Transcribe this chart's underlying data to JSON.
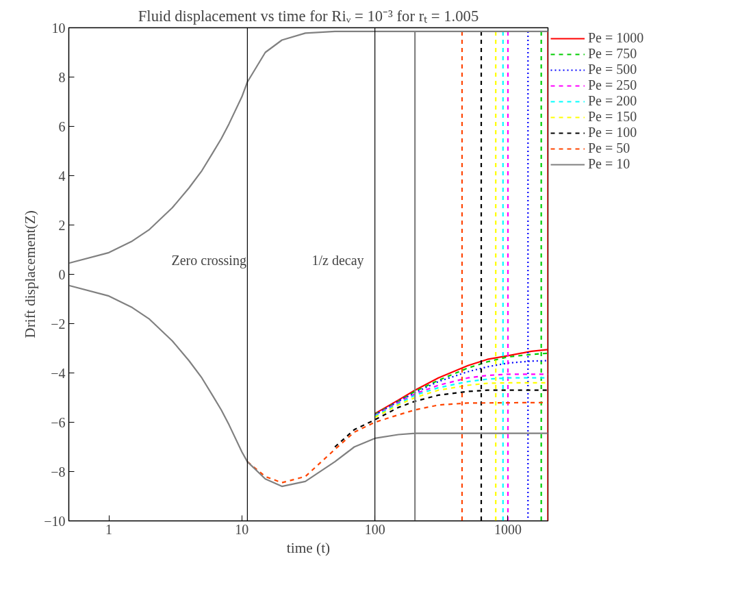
{
  "chart_data": {
    "type": "line",
    "title": "Fluid displacement vs time for Riᵥ = 10⁻³ for rₜ = 1.005",
    "xlabel": "time (t)",
    "ylabel": "Drift displacement(Z)",
    "log": "x",
    "xlim": [
      0.5,
      2000
    ],
    "ylim": [
      -10,
      10
    ],
    "xticks": [
      1,
      10,
      100,
      1000
    ],
    "yticks": [
      -10,
      -8,
      -6,
      -4,
      -2,
      0,
      2,
      4,
      6,
      8,
      10
    ],
    "grid": false,
    "legend": "top right",
    "ref_lines": [
      {
        "axis": "x",
        "value": 11,
        "color": "#000000"
      },
      {
        "axis": "x",
        "value": 100,
        "color": "#000000"
      }
    ],
    "annotations": [
      "Zero crossing",
      "1/z decay"
    ],
    "series": [
      {
        "name": "Pe = 1000",
        "color": "#ff0000",
        "line_style": "solid",
        "x": [
          2000,
          2000,
          null,
          100,
          150,
          200,
          300,
          500,
          700,
          1000,
          1500,
          2000
        ],
        "values": [
          9.85,
          -10,
          null,
          -5.65,
          -5.1,
          -4.7,
          -4.2,
          -3.7,
          -3.45,
          -3.3,
          -3.12,
          -3.05
        ]
      },
      {
        "name": "Pe = 750",
        "color": "#00cc00",
        "line_style": "dashed",
        "x": [
          1780,
          1780,
          null,
          100,
          150,
          200,
          300,
          500,
          700,
          1000,
          1500,
          2000
        ],
        "values": [
          9.85,
          -10,
          null,
          -5.68,
          -5.15,
          -4.75,
          -4.3,
          -3.8,
          -3.55,
          -3.35,
          -3.25,
          -3.2
        ]
      },
      {
        "name": "Pe = 500",
        "color": "#0000ff",
        "line_style": "dotted",
        "x": [
          1415,
          1415,
          null,
          100,
          150,
          200,
          300,
          500,
          700,
          1000,
          1500,
          2000
        ],
        "values": [
          9.85,
          -10,
          null,
          -5.7,
          -5.15,
          -4.8,
          -4.35,
          -3.95,
          -3.75,
          -3.6,
          -3.52,
          -3.5
        ]
      },
      {
        "name": "Pe = 250",
        "color": "#ff00ff",
        "line_style": "dashed",
        "x": [
          1000,
          1000,
          null,
          100,
          150,
          200,
          300,
          500,
          700,
          1000,
          2000
        ],
        "values": [
          9.85,
          -10,
          null,
          -5.72,
          -5.2,
          -4.85,
          -4.5,
          -4.2,
          -4.1,
          -4.05,
          -4.05
        ]
      },
      {
        "name": "Pe = 200",
        "color": "#00ffff",
        "line_style": "dashed",
        "x": [
          918,
          918,
          null,
          100,
          150,
          200,
          300,
          500,
          700,
          1000,
          2000
        ],
        "values": [
          9.85,
          -10,
          null,
          -5.75,
          -5.25,
          -4.9,
          -4.6,
          -4.35,
          -4.25,
          -4.2,
          -4.2
        ]
      },
      {
        "name": "Pe = 150",
        "color": "#ffff00",
        "line_style": "dashed",
        "x": [
          810,
          810,
          null,
          100,
          150,
          200,
          300,
          500,
          700,
          1000,
          2000
        ],
        "values": [
          9.85,
          -10,
          null,
          -5.8,
          -5.3,
          -5.0,
          -4.7,
          -4.5,
          -4.42,
          -4.4,
          -4.4
        ]
      },
      {
        "name": "Pe = 100",
        "color": "#000000",
        "line_style": "dashed",
        "x": [
          630,
          630,
          null,
          50,
          70,
          100,
          150,
          200,
          300,
          500,
          700,
          2000
        ],
        "values": [
          9.85,
          -10,
          null,
          -7.0,
          -6.3,
          -5.9,
          -5.4,
          -5.15,
          -4.9,
          -4.75,
          -4.7,
          -4.7
        ]
      },
      {
        "name": "Pe = 50",
        "color": "#ff4500",
        "line_style": "dashed",
        "x": [
          452,
          452,
          null,
          11,
          15,
          20,
          30,
          50,
          70,
          100,
          150,
          200,
          300,
          500,
          2000
        ],
        "values": [
          9.85,
          -10,
          null,
          -7.6,
          -8.2,
          -8.45,
          -8.2,
          -7.1,
          -6.4,
          -6.0,
          -5.7,
          -5.5,
          -5.3,
          -5.22,
          -5.2
        ]
      },
      {
        "name": "Pe = 10",
        "color": "#808080",
        "line_style": "solid",
        "x": [
          0.5,
          1,
          1.5,
          2,
          3,
          4,
          5,
          6,
          7,
          8,
          10,
          11,
          15,
          20,
          30,
          50,
          2000,
          null,
          200,
          200,
          null,
          0.5,
          1,
          1.5,
          2,
          3,
          4,
          5,
          6,
          7,
          8,
          10,
          11,
          15,
          20,
          30,
          50,
          70,
          100,
          150,
          200,
          2000
        ],
        "values": [
          0.45,
          0.88,
          1.35,
          1.8,
          2.7,
          3.5,
          4.2,
          4.9,
          5.5,
          6.1,
          7.2,
          7.8,
          9.0,
          9.5,
          9.78,
          9.85,
          9.85,
          null,
          9.85,
          -10,
          null,
          -0.45,
          -0.88,
          -1.35,
          -1.8,
          -2.7,
          -3.5,
          -4.2,
          -4.9,
          -5.5,
          -6.1,
          -7.2,
          -7.6,
          -8.3,
          -8.6,
          -8.4,
          -7.6,
          -7.0,
          -6.65,
          -6.5,
          -6.45,
          -6.45
        ]
      }
    ]
  }
}
